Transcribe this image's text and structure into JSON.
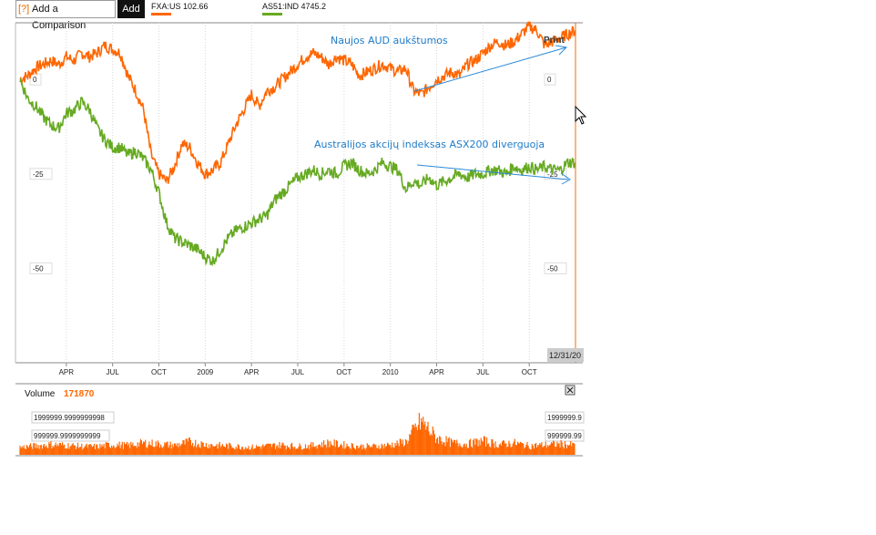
{
  "toolbar": {
    "help_label": "[?]",
    "compare_label": "Add a Comparison",
    "add_label": "Add",
    "legend": [
      {
        "label": "FXA:US 102.66",
        "color": "#ff6600"
      },
      {
        "label": "AS51:IND 4745.2",
        "color": "#66aa22"
      }
    ]
  },
  "print_label": "Print",
  "annotations": [
    "Naujos AUD aukštumos",
    "Australijos akcijų indeksas ASX200 diverguoja"
  ],
  "last_date_label": "12/31/20",
  "volume": {
    "label": "Volume",
    "value": "171870",
    "axis_labels": [
      "1999999.9999999998",
      "999999.9999999999"
    ],
    "axis_labels_right": [
      "1999999.9",
      "999999.99"
    ]
  },
  "chart_data": {
    "type": "line",
    "y_tick_labels": [
      "0",
      "-25",
      "-50"
    ],
    "x_tick_labels": [
      "APR",
      "JUL",
      "OCT",
      "2009",
      "APR",
      "JUL",
      "OCT",
      "2010",
      "APR",
      "JUL",
      "OCT"
    ],
    "ylim": [
      -75,
      15
    ],
    "xlim": [
      0,
      36
    ],
    "series": [
      {
        "name": "FXA:US 102.66",
        "color": "#ff6600",
        "x": [
          0.0,
          0.5,
          1.0,
          1.5,
          2.0,
          2.5,
          3.0,
          3.5,
          4.0,
          4.5,
          5.0,
          5.5,
          6.0,
          6.5,
          7.0,
          7.5,
          8.0,
          8.5,
          9.0,
          9.5,
          10.0,
          10.5,
          11.0,
          11.5,
          12.0,
          12.5,
          13.0,
          13.5,
          14.0,
          14.5,
          15.0,
          15.5,
          16.0,
          16.5,
          17.0,
          17.5,
          18.0,
          18.5,
          19.0,
          19.5,
          20.0,
          20.5,
          21.0,
          21.5,
          22.0,
          22.5,
          23.0,
          23.5,
          24.0,
          24.5,
          25.0,
          25.5,
          26.0,
          26.5,
          27.0,
          27.5,
          28.0,
          28.5,
          29.0,
          29.5,
          30.0,
          30.5,
          31.0,
          31.5,
          32.0,
          32.5,
          33.0,
          33.5,
          34.0,
          34.5,
          35.0,
          35.5,
          36.0
        ],
        "y": [
          0,
          1,
          3,
          4,
          5,
          4,
          6,
          5,
          7,
          6,
          7,
          9,
          8,
          7,
          1,
          -3,
          -8,
          -20,
          -25,
          -27,
          -23,
          -17,
          -18,
          -22,
          -25,
          -24,
          -22,
          -17,
          -12,
          -8,
          -4,
          -7,
          -3,
          -2,
          0,
          2,
          4,
          6,
          7,
          6,
          4,
          6,
          5,
          4,
          1,
          2,
          3,
          4,
          3,
          2,
          3,
          -3,
          -4,
          -2,
          0,
          1,
          2,
          1,
          4,
          5,
          7,
          9,
          10,
          9,
          10,
          12,
          14,
          13,
          9,
          10,
          11,
          12,
          13
        ]
      },
      {
        "name": "AS51:IND 4745.2",
        "color": "#66aa22",
        "x": [
          0.0,
          0.5,
          1.0,
          1.5,
          2.0,
          2.5,
          3.0,
          3.5,
          4.0,
          4.5,
          5.0,
          5.5,
          6.0,
          6.5,
          7.0,
          7.5,
          8.0,
          8.5,
          9.0,
          9.5,
          10.0,
          10.5,
          11.0,
          11.5,
          12.0,
          12.5,
          13.0,
          13.5,
          14.0,
          14.5,
          15.0,
          15.5,
          16.0,
          16.5,
          17.0,
          17.5,
          18.0,
          18.5,
          19.0,
          19.5,
          20.0,
          20.5,
          21.0,
          21.5,
          22.0,
          22.5,
          23.0,
          23.5,
          24.0,
          24.5,
          25.0,
          25.5,
          26.0,
          26.5,
          27.0,
          27.5,
          28.0,
          28.5,
          29.0,
          29.5,
          30.0,
          30.5,
          31.0,
          31.5,
          32.0,
          32.5,
          33.0,
          33.5,
          34.0,
          34.5,
          35.0,
          35.5,
          36.0
        ],
        "y": [
          0,
          -5,
          -7,
          -10,
          -12,
          -13,
          -9,
          -8,
          -6,
          -8,
          -13,
          -16,
          -18,
          -18,
          -20,
          -19,
          -21,
          -24,
          -30,
          -38,
          -42,
          -43,
          -44,
          -45,
          -47,
          -48,
          -45,
          -42,
          -40,
          -39,
          -38,
          -37,
          -36,
          -32,
          -30,
          -28,
          -26,
          -25,
          -24,
          -25,
          -24,
          -25,
          -23,
          -22,
          -24,
          -25,
          -24,
          -22,
          -23,
          -24,
          -29,
          -27,
          -28,
          -26,
          -28,
          -27,
          -26,
          -25,
          -26,
          -25,
          -25,
          -24,
          -24,
          -25,
          -23,
          -24,
          -23,
          -24,
          -23,
          -24,
          -24,
          -22,
          -22
        ]
      }
    ],
    "volume": {
      "x": [
        0,
        1,
        2,
        3,
        4,
        5,
        6,
        7,
        8,
        9,
        10,
        11,
        12,
        13,
        14,
        15,
        16,
        17,
        18,
        19,
        20,
        21,
        22,
        23,
        24,
        25,
        26,
        27,
        28,
        29,
        30,
        31,
        32,
        33,
        34,
        35,
        36
      ],
      "values": [
        380000,
        450000,
        520000,
        480000,
        430000,
        410000,
        520000,
        470000,
        600000,
        550000,
        480000,
        650000,
        520000,
        470000,
        430000,
        380000,
        450000,
        500000,
        420000,
        470000,
        600000,
        500000,
        420000,
        430000,
        500000,
        650000,
        1700000,
        850000,
        600000,
        550000,
        700000,
        520000,
        600000,
        450000,
        500000,
        550000,
        480000
      ],
      "ylim": [
        0,
        3200000
      ]
    }
  }
}
